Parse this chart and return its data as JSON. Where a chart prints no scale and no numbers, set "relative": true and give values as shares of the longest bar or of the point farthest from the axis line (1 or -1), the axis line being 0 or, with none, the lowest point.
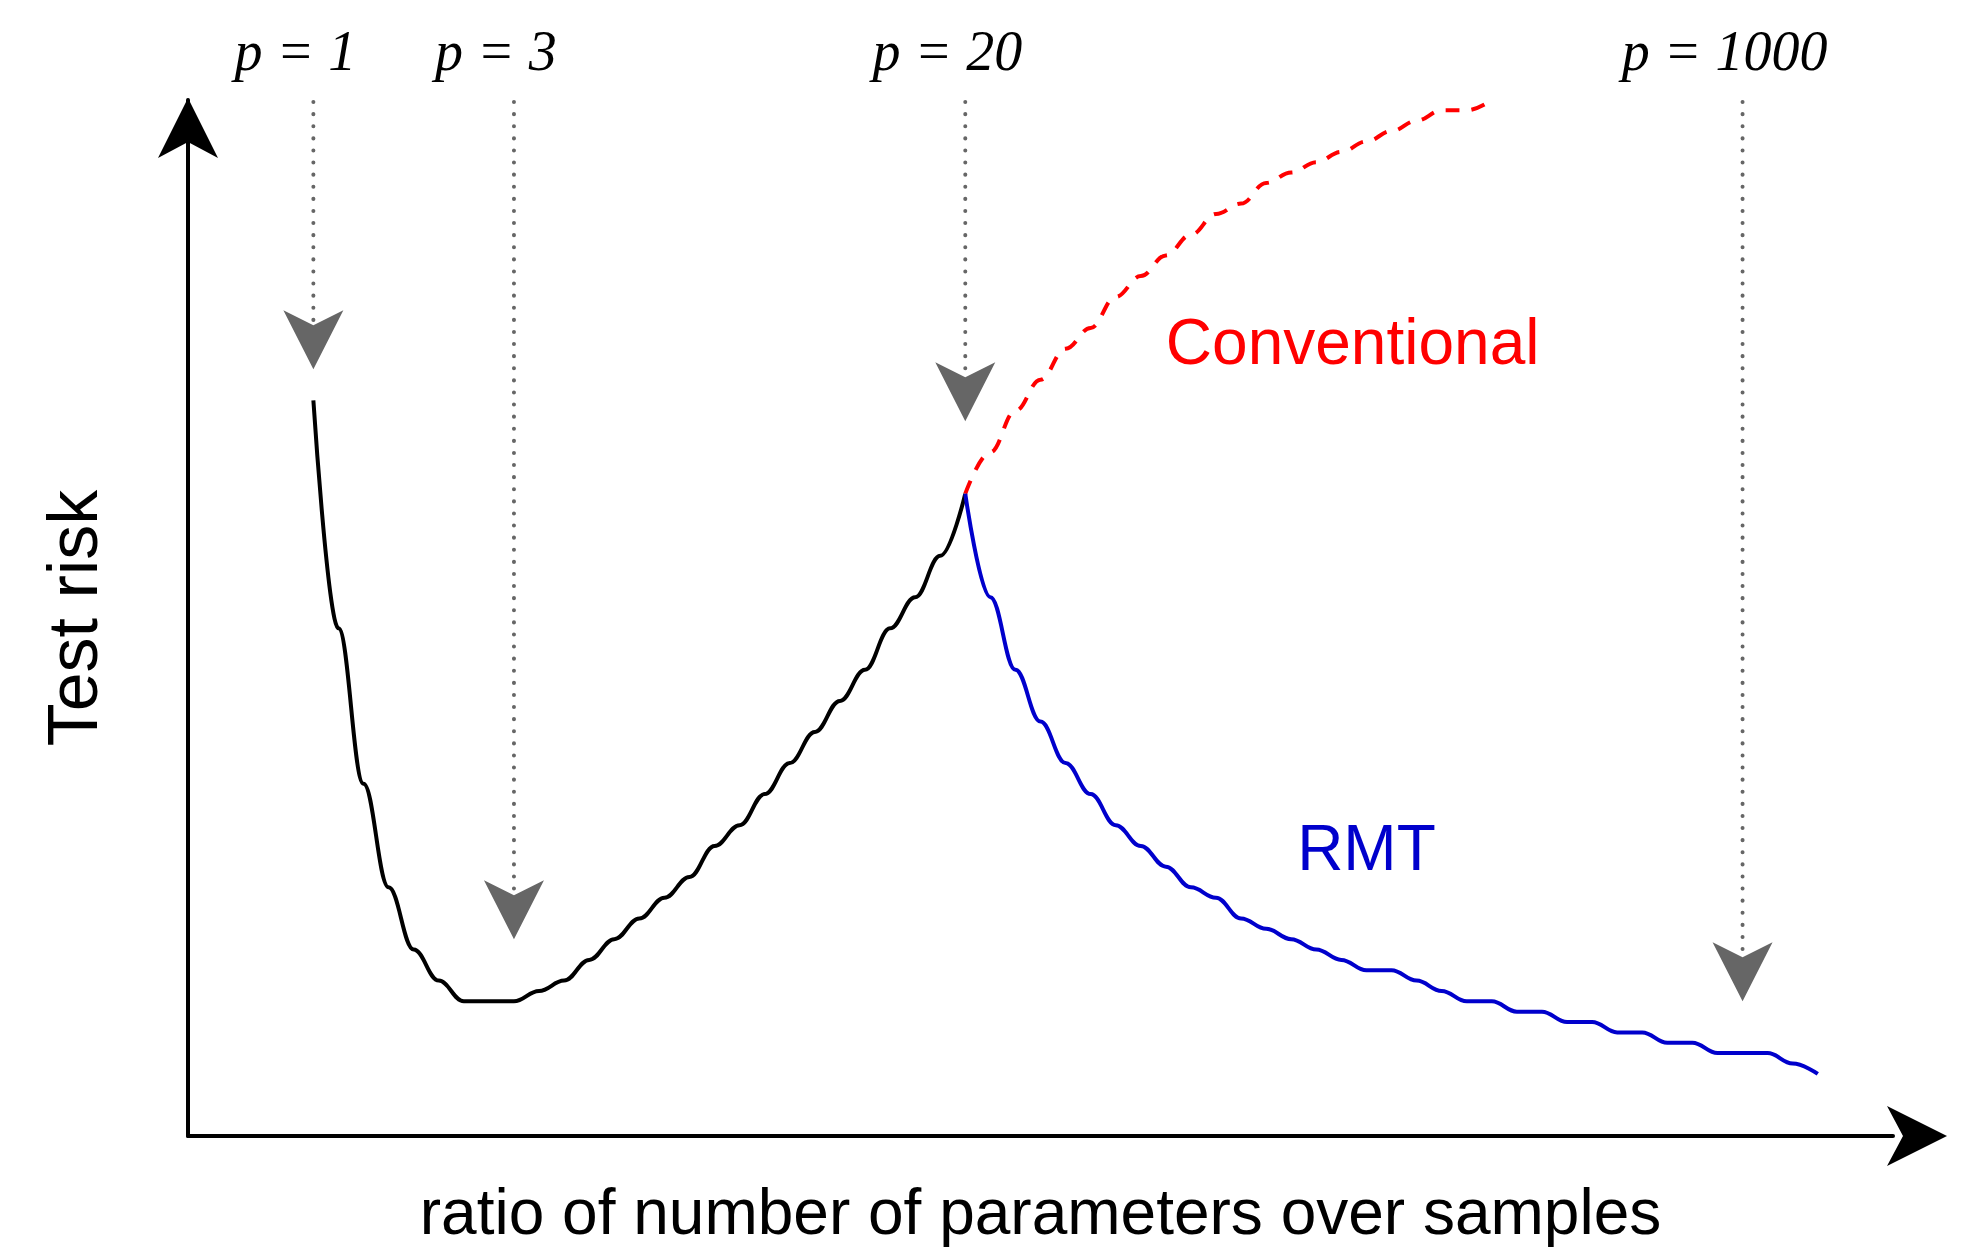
{
  "chart_data": {
    "type": "line",
    "relative": true,
    "xlabel": "ratio of number of parameters over samples",
    "ylabel": "Test risk",
    "legend": false,
    "grid": false,
    "marker": "none",
    "categories": [
      null,
      null,
      null,
      null,
      null,
      null,
      null,
      null,
      null,
      null,
      null,
      null,
      null,
      null,
      null,
      null,
      null,
      null,
      null,
      null,
      null,
      null,
      null,
      null,
      null,
      null,
      null,
      null,
      null,
      null,
      null,
      null,
      null,
      null,
      null,
      null,
      null,
      null,
      null,
      null,
      null,
      null,
      null,
      null,
      null,
      null,
      null,
      null,
      null,
      null,
      null,
      null,
      null,
      null,
      null,
      null,
      null,
      null,
      null,
      null,
      null,
      null,
      null,
      null,
      null,
      null,
      null,
      null,
      null
    ],
    "series": [
      {
        "color": "#000000",
        "line_style": "solid",
        "values": [
          null,
          null,
          null,
          null,
          null,
          0.71,
          0.49,
          0.34,
          0.24,
          0.18,
          0.15,
          0.13,
          0.13,
          0.13,
          0.14,
          0.15,
          0.17,
          0.19,
          0.21,
          0.23,
          0.25,
          0.28,
          0.3,
          0.33,
          0.36,
          0.39,
          0.42,
          0.45,
          0.49,
          0.52,
          0.56,
          0.62,
          null,
          null,
          null,
          null,
          null,
          null,
          null,
          null,
          null,
          null,
          null,
          null,
          null,
          null,
          null,
          null,
          null,
          null,
          null,
          null,
          null,
          null,
          null,
          null,
          null,
          null,
          null,
          null,
          null,
          null,
          null,
          null,
          null,
          null,
          null,
          null,
          null
        ]
      },
      {
        "name": "Conventional",
        "color": "#ff0000",
        "line_style": "dashed",
        "values": [
          null,
          null,
          null,
          null,
          null,
          null,
          null,
          null,
          null,
          null,
          null,
          null,
          null,
          null,
          null,
          null,
          null,
          null,
          null,
          null,
          null,
          null,
          null,
          null,
          null,
          null,
          null,
          null,
          null,
          null,
          null,
          0.62,
          0.66,
          0.7,
          0.73,
          0.76,
          0.78,
          0.81,
          0.83,
          0.85,
          0.87,
          0.89,
          0.9,
          0.92,
          0.93,
          0.94,
          0.95,
          0.96,
          0.97,
          0.98,
          0.99,
          0.99,
          1.0,
          null,
          null,
          null,
          null,
          null,
          null,
          null,
          null,
          null,
          null,
          null,
          null,
          null,
          null,
          null,
          null
        ]
      },
      {
        "name": "RMT",
        "color": "#0000cc",
        "line_style": "solid",
        "values": [
          null,
          null,
          null,
          null,
          null,
          null,
          null,
          null,
          null,
          null,
          null,
          null,
          null,
          null,
          null,
          null,
          null,
          null,
          null,
          null,
          null,
          null,
          null,
          null,
          null,
          null,
          null,
          null,
          null,
          null,
          null,
          0.62,
          0.52,
          0.45,
          0.4,
          0.36,
          0.33,
          0.3,
          0.28,
          0.26,
          0.24,
          0.23,
          0.21,
          0.2,
          0.19,
          0.18,
          0.17,
          0.16,
          0.16,
          0.15,
          0.14,
          0.13,
          0.13,
          0.12,
          0.12,
          0.11,
          0.11,
          0.1,
          0.1,
          0.09,
          0.09,
          0.08,
          0.08,
          0.08,
          0.07,
          0.06,
          null,
          null,
          null
        ]
      }
    ],
    "annotations": [
      "p = 1",
      "p = 3",
      "p = 20",
      "p = 1000"
    ]
  }
}
